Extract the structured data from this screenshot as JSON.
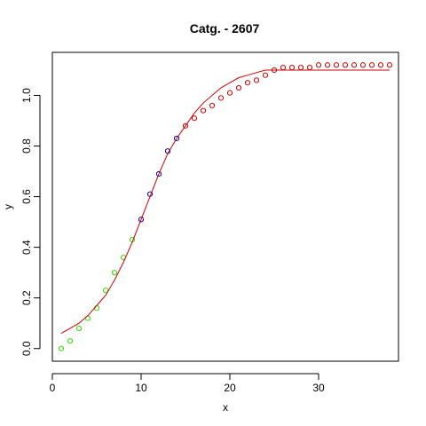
{
  "chart_data": {
    "type": "scatter",
    "title": "Catg. - 2607",
    "xlabel": "x",
    "ylabel": "y",
    "xlim": [
      0,
      39
    ],
    "ylim": [
      -0.05,
      1.17
    ],
    "xticks": [
      0,
      10,
      20,
      30
    ],
    "yticks": [
      0.0,
      0.2,
      0.4,
      0.6,
      0.8,
      1.0
    ],
    "ytick_labels": [
      "0.0",
      "0.2",
      "0.4",
      "0.6",
      "0.8",
      "1.0"
    ],
    "grid": false,
    "series": [
      {
        "color": "#33dd00",
        "marker": "open-circle",
        "x": [
          1,
          2,
          3,
          4,
          5,
          6,
          7,
          8,
          9
        ],
        "y": [
          0.0,
          0.03,
          0.08,
          0.12,
          0.16,
          0.23,
          0.3,
          0.36,
          0.43
        ]
      },
      {
        "color": "#000099",
        "marker": "open-circle",
        "x": [
          10,
          11,
          12,
          13,
          14
        ],
        "y": [
          0.51,
          0.61,
          0.69,
          0.78,
          0.83
        ]
      },
      {
        "color": "#cc0000",
        "marker": "open-circle",
        "x": [
          15,
          16,
          17,
          18,
          19,
          20,
          21,
          22,
          23,
          24,
          25,
          26,
          27,
          28,
          29,
          30,
          31,
          32,
          33,
          34,
          35,
          36,
          37,
          38
        ],
        "y": [
          0.88,
          0.91,
          0.94,
          0.96,
          0.99,
          1.01,
          1.03,
          1.05,
          1.06,
          1.08,
          1.1,
          1.11,
          1.11,
          1.11,
          1.11,
          1.12,
          1.12,
          1.12,
          1.12,
          1.12,
          1.12,
          1.12,
          1.12,
          1.12
        ]
      },
      {
        "color": "#cc0000",
        "marker": "line",
        "x": [
          1,
          2,
          3,
          4,
          5,
          6,
          7,
          8,
          9,
          10,
          11,
          12,
          13,
          14,
          15,
          16,
          17,
          18,
          19,
          20,
          21,
          22,
          23,
          24,
          25,
          26,
          27,
          28,
          29,
          30,
          31,
          32,
          33,
          34,
          35,
          36,
          37,
          38
        ],
        "y": [
          0.06,
          0.08,
          0.1,
          0.13,
          0.17,
          0.21,
          0.27,
          0.34,
          0.42,
          0.51,
          0.6,
          0.69,
          0.77,
          0.83,
          0.88,
          0.93,
          0.97,
          1.0,
          1.03,
          1.05,
          1.07,
          1.08,
          1.09,
          1.1,
          1.1,
          1.1,
          1.1,
          1.1,
          1.1,
          1.1,
          1.1,
          1.1,
          1.1,
          1.1,
          1.1,
          1.1,
          1.1,
          1.1
        ]
      }
    ]
  }
}
